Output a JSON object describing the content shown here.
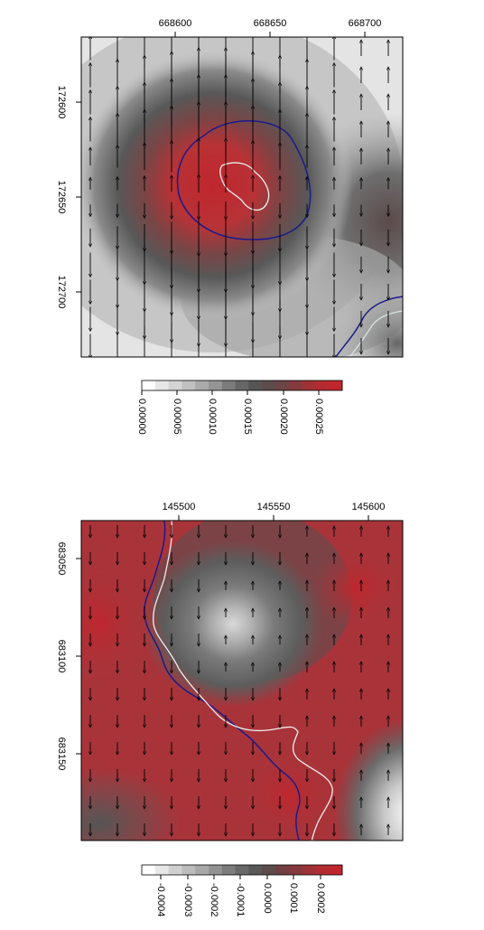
{
  "chart_data": [
    {
      "type": "heatmap",
      "x_ticks": [
        "668600",
        "668650",
        "668700"
      ],
      "y_ticks": [
        "172600",
        "172650",
        "172700"
      ],
      "legend_ticks": [
        "0.00000",
        "0.00005",
        "0.00010",
        "0.00015",
        "0.00020",
        "0.00025"
      ],
      "legend_range": [
        0,
        0.00028
      ],
      "colors": {
        "low": "#ffffff",
        "mid": "#555555",
        "high": "#c0262d",
        "contour_outer": "#1a1a8c",
        "contour_inner": "#e6e6e6"
      },
      "features": {
        "hotspot_center": [
          668618,
          172647
        ],
        "hotspot_peak": 0.00027,
        "secondary_center": [
          668715,
          172655
        ],
        "secondary_peak": 0.00018
      },
      "arrows": "vertical, convergent toward center (up above, down below)"
    },
    {
      "type": "heatmap",
      "x_ticks": [
        "145500",
        "145550",
        "145600"
      ],
      "y_ticks": [
        "683050",
        "683100",
        "683150"
      ],
      "legend_ticks": [
        "-0.0004",
        "-0.0003",
        "-0.0002",
        "-0.0001",
        "0.0000",
        "0.0001",
        "0.0002"
      ],
      "legend_range": [
        -0.00045,
        0.00025
      ],
      "colors": {
        "low": "#ffffff",
        "mid": "#555555",
        "high": "#c0262d",
        "contour_outer": "#1a1a8c",
        "contour_inner": "#e6e6e6"
      },
      "features": {
        "low_center": [
          145531,
          683080
        ],
        "low_value": -0.0003,
        "corner_low": [
          145615,
          683165
        ],
        "corner_value": -0.00045
      },
      "arrows": "mostly downward, some upward on the right"
    }
  ]
}
